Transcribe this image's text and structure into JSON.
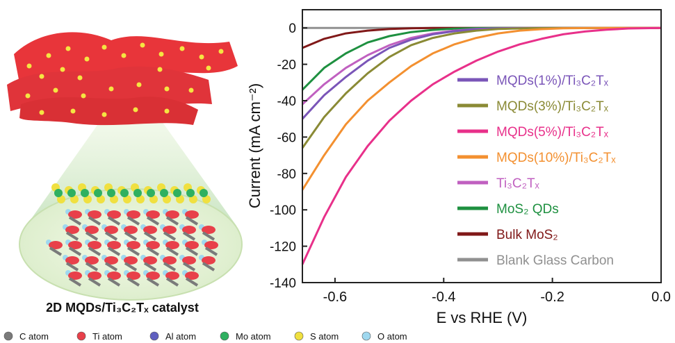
{
  "illustration": {
    "caption": "2D MQDs/Ti₃C₂Tₓ  catalyst",
    "atom_legend": [
      {
        "label": "C atom",
        "color": "#7a7a7a"
      },
      {
        "label": "Ti atom",
        "color": "#e8404a"
      },
      {
        "label": "Al atom",
        "color": "#6060c0"
      },
      {
        "label": "Mo atom",
        "color": "#2fb060"
      },
      {
        "label": "S atom",
        "color": "#f0e040"
      },
      {
        "label": "O atom",
        "color": "#9fd8ef"
      }
    ]
  },
  "chart_data": {
    "type": "line",
    "xlabel": "E vs RHE (V)",
    "ylabel": "Current (mA cm⁻²)",
    "xlim": [
      -0.66,
      0.0
    ],
    "ylim": [
      -140,
      10
    ],
    "xticks": [
      -0.6,
      -0.4,
      -0.2,
      0.0
    ],
    "xtick_labels": [
      "-0.6",
      "-0.4",
      "-0.2",
      "0.0"
    ],
    "yticks": [
      0,
      -20,
      -40,
      -60,
      -80,
      -100,
      -120,
      -140
    ],
    "ytick_labels": [
      "0",
      "-20",
      "-40",
      "-60",
      "-80",
      "-100",
      "-120",
      "-140"
    ],
    "legend_position": "right",
    "series": [
      {
        "name": "MQDs(1%)/Ti₃C₂Tₓ",
        "color": "#7a55b8",
        "x": [
          -0.66,
          -0.62,
          -0.58,
          -0.54,
          -0.5,
          -0.46,
          -0.42,
          -0.38,
          -0.34,
          -0.3,
          -0.25,
          -0.2,
          0.0
        ],
        "y": [
          -50,
          -37,
          -27,
          -18,
          -11,
          -6.5,
          -3.5,
          -1.8,
          -0.8,
          -0.3,
          -0.1,
          0,
          0
        ]
      },
      {
        "name": "MQDs(3%)/Ti₃C₂Tₓ",
        "color": "#8a8a35",
        "x": [
          -0.66,
          -0.62,
          -0.58,
          -0.54,
          -0.5,
          -0.46,
          -0.42,
          -0.38,
          -0.34,
          -0.3,
          -0.25,
          -0.2,
          0.0
        ],
        "y": [
          -66,
          -49,
          -36,
          -25,
          -16,
          -9.5,
          -5.5,
          -3,
          -1.5,
          -0.6,
          -0.2,
          0,
          0
        ]
      },
      {
        "name": "MQDs(5%)/Ti₃C₂Tₓ",
        "color": "#e8308a",
        "x": [
          -0.66,
          -0.62,
          -0.58,
          -0.54,
          -0.5,
          -0.46,
          -0.42,
          -0.38,
          -0.34,
          -0.3,
          -0.26,
          -0.22,
          -0.18,
          -0.14,
          -0.1,
          -0.06,
          0.0
        ],
        "y": [
          -130,
          -104,
          -82,
          -65,
          -51,
          -40,
          -31,
          -24,
          -18,
          -13,
          -9,
          -6,
          -3.5,
          -2,
          -1,
          -0.3,
          0
        ]
      },
      {
        "name": "MQDs(10%)/Ti₃C₂Tₓ",
        "color": "#f39030",
        "x": [
          -0.66,
          -0.62,
          -0.58,
          -0.54,
          -0.5,
          -0.46,
          -0.42,
          -0.38,
          -0.34,
          -0.3,
          -0.26,
          -0.22,
          -0.18,
          -0.12,
          0.0
        ],
        "y": [
          -89,
          -70,
          -53,
          -40,
          -30,
          -21,
          -14,
          -9,
          -5.5,
          -3,
          -1.5,
          -0.7,
          -0.2,
          0,
          0
        ]
      },
      {
        "name": "Ti₃C₂Tₓ",
        "color": "#c060c0",
        "x": [
          -0.66,
          -0.62,
          -0.58,
          -0.54,
          -0.5,
          -0.46,
          -0.42,
          -0.38,
          -0.34,
          -0.3,
          -0.25,
          0.0
        ],
        "y": [
          -42,
          -31,
          -22,
          -15,
          -9.5,
          -5.5,
          -3,
          -1.5,
          -0.6,
          -0.2,
          0,
          0
        ]
      },
      {
        "name": "MoS₂ QDs",
        "color": "#1e9040",
        "x": [
          -0.66,
          -0.62,
          -0.58,
          -0.54,
          -0.5,
          -0.46,
          -0.42,
          -0.38,
          -0.34,
          -0.3,
          0.0
        ],
        "y": [
          -34,
          -22,
          -14,
          -8,
          -4.5,
          -2.3,
          -1.1,
          -0.4,
          -0.1,
          0,
          0
        ]
      },
      {
        "name": "Bulk MoS₂",
        "color": "#801818",
        "x": [
          -0.66,
          -0.62,
          -0.58,
          -0.54,
          -0.5,
          -0.46,
          -0.42,
          -0.38,
          0.0
        ],
        "y": [
          -11,
          -6,
          -3,
          -1.5,
          -0.6,
          -0.2,
          0,
          0,
          0
        ]
      },
      {
        "name": "Blank Glass Carbon",
        "color": "#909090",
        "x": [
          -0.66,
          -0.5,
          -0.3,
          0.0
        ],
        "y": [
          0,
          0,
          0,
          0
        ]
      }
    ]
  }
}
